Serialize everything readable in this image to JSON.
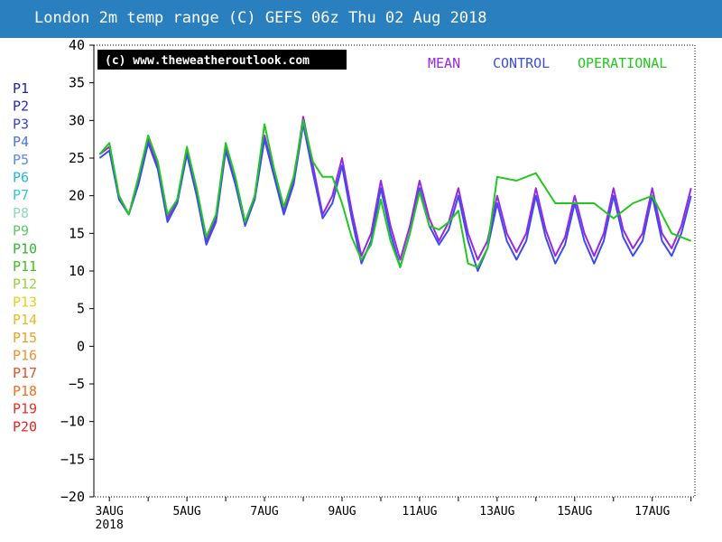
{
  "header": {
    "title": "London 2m temp range (C) GEFS 06z Thu 02 Aug 2018"
  },
  "watermark": "(c) www.theweatheroutlook.com",
  "legend_top": [
    {
      "label": "MEAN",
      "color": "#9a28e0"
    },
    {
      "label": "CONTROL",
      "color": "#3c4cf0"
    },
    {
      "label": "OPERATIONAL",
      "color": "#22c81e"
    }
  ],
  "members": [
    {
      "label": "P1",
      "color": "#2020b8"
    },
    {
      "label": "P2",
      "color": "#2828c8"
    },
    {
      "label": "P3",
      "color": "#3a44d0"
    },
    {
      "label": "P4",
      "color": "#4a74d8"
    },
    {
      "label": "P5",
      "color": "#5a8ae0"
    },
    {
      "label": "P6",
      "color": "#20b8d8"
    },
    {
      "label": "P7",
      "color": "#30c8d0"
    },
    {
      "label": "P8",
      "color": "#90d8b8"
    },
    {
      "label": "P9",
      "color": "#60c860"
    },
    {
      "label": "P10",
      "color": "#30b830"
    },
    {
      "label": "P11",
      "color": "#40c020"
    },
    {
      "label": "P12",
      "color": "#98d040"
    },
    {
      "label": "P13",
      "color": "#e8d020"
    },
    {
      "label": "P14",
      "color": "#f0b820"
    },
    {
      "label": "P15",
      "color": "#f0a020"
    },
    {
      "label": "P16",
      "color": "#f09030"
    },
    {
      "label": "P17",
      "color": "#e85020"
    },
    {
      "label": "P18",
      "color": "#f07020"
    },
    {
      "label": "P19",
      "color": "#e83020"
    },
    {
      "label": "P20",
      "color": "#e82020"
    }
  ],
  "chart_data": {
    "type": "line",
    "title": "London 2m temp range (C) GEFS 06z Thu 02 Aug 2018",
    "xlabel": "",
    "ylabel": "",
    "ylim": [
      -20,
      40
    ],
    "yticks": [
      40,
      35,
      30,
      25,
      20,
      15,
      10,
      5,
      0,
      -5,
      -10,
      -15,
      -20
    ],
    "xlim": [
      2.6,
      18.1
    ],
    "xticks": [
      {
        "day": 3,
        "label": "3AUG",
        "sublabel": "2018"
      },
      {
        "day": 5,
        "label": "5AUG"
      },
      {
        "day": 7,
        "label": "7AUG"
      },
      {
        "day": 9,
        "label": "9AUG"
      },
      {
        "day": 11,
        "label": "11AUG"
      },
      {
        "day": 13,
        "label": "13AUG"
      },
      {
        "day": 15,
        "label": "15AUG"
      },
      {
        "day": 17,
        "label": "17AUG"
      }
    ],
    "grid": false,
    "x_unit": "day of August 2018",
    "series": [
      {
        "name": "MEAN",
        "x": [
          2.75,
          3,
          3.25,
          3.5,
          3.75,
          4,
          4.25,
          4.5,
          4.75,
          5,
          5.25,
          5.5,
          5.75,
          6,
          6.25,
          6.5,
          6.75,
          7,
          7.25,
          7.5,
          7.75,
          8,
          8.25,
          8.5,
          8.75,
          9,
          9.25,
          9.5,
          9.75,
          10,
          10.25,
          10.5,
          10.75,
          11,
          11.25,
          11.5,
          11.75,
          12,
          12.25,
          12.5,
          12.75,
          13,
          13.25,
          13.5,
          13.75,
          14,
          14.25,
          14.5,
          14.75,
          15,
          15.25,
          15.5,
          15.75,
          16,
          16.25,
          16.5,
          16.75,
          17,
          17.25,
          17.5,
          17.75,
          18
        ],
        "y": [
          25.5,
          26.5,
          20,
          17.5,
          22,
          27.5,
          24,
          17,
          19.5,
          26,
          20.5,
          14,
          17,
          26.5,
          22,
          16.5,
          20,
          28,
          23,
          18,
          22,
          30.5,
          24,
          17.5,
          20,
          25,
          18,
          12,
          15,
          22,
          16,
          11.5,
          16,
          22,
          17,
          14,
          16.5,
          21,
          15,
          11.5,
          14,
          20,
          15,
          12.5,
          15,
          21,
          15.5,
          12,
          14.5,
          20,
          15,
          12,
          15,
          21,
          15.5,
          13,
          15,
          21,
          15,
          13,
          16,
          21
        ]
      },
      {
        "name": "CONTROL",
        "x": [
          2.75,
          3,
          3.25,
          3.5,
          3.75,
          4,
          4.25,
          4.5,
          4.75,
          5,
          5.25,
          5.5,
          5.75,
          6,
          6.25,
          6.5,
          6.75,
          7,
          7.25,
          7.5,
          7.75,
          8,
          8.25,
          8.5,
          8.75,
          9,
          9.25,
          9.5,
          9.75,
          10,
          10.25,
          10.5,
          10.75,
          11,
          11.25,
          11.5,
          11.75,
          12,
          12.25,
          12.5,
          12.75,
          13,
          13.25,
          13.5,
          13.75,
          14,
          14.25,
          14.5,
          14.75,
          15,
          15.25,
          15.5,
          15.75,
          16,
          16.25,
          16.5,
          16.75,
          17,
          17.25,
          17.5,
          17.75,
          18
        ],
        "y": [
          25,
          26,
          19.5,
          17.5,
          21.5,
          27,
          23.5,
          16.5,
          19,
          25.5,
          20,
          13.5,
          16.5,
          26,
          21.5,
          16,
          19.5,
          27.5,
          22.5,
          17.5,
          21.5,
          29.5,
          23,
          17,
          19,
          24,
          17,
          11,
          14,
          21,
          15,
          10.5,
          15,
          21,
          16,
          13.5,
          15.5,
          20,
          14,
          10,
          13,
          19,
          14,
          11.5,
          14,
          20,
          14.5,
          11,
          13.5,
          19,
          14,
          11,
          14,
          20,
          14.5,
          12,
          14,
          20,
          14,
          12,
          15,
          20
        ]
      },
      {
        "name": "OPERATIONAL",
        "x": [
          2.75,
          3,
          3.25,
          3.5,
          3.75,
          4,
          4.25,
          4.5,
          4.75,
          5,
          5.25,
          5.5,
          5.75,
          6,
          6.25,
          6.5,
          6.75,
          7,
          7.25,
          7.5,
          7.75,
          8,
          8.25,
          8.5,
          8.75,
          9,
          9.25,
          9.5,
          9.75,
          10,
          10.25,
          10.5,
          10.75,
          11,
          11.25,
          11.5,
          11.75,
          12,
          12.25,
          12.5,
          12.75,
          13,
          13.5,
          14,
          14.5,
          15,
          15.5,
          16,
          16.5,
          17,
          17.5,
          18
        ],
        "y": [
          25.5,
          27,
          20,
          17.5,
          22.5,
          28,
          24.5,
          17.5,
          19.5,
          26.5,
          21,
          14.5,
          17.5,
          27,
          22.5,
          16.5,
          20,
          29.5,
          23.5,
          18.5,
          22.5,
          30,
          24.5,
          22.5,
          22.5,
          19,
          14.5,
          11.5,
          13.5,
          19.5,
          14,
          10.5,
          15,
          20.5,
          16,
          15.5,
          16.5,
          18,
          11,
          10.5,
          13,
          22.5,
          22,
          23,
          19,
          19,
          19,
          17,
          19,
          20,
          15,
          14
        ]
      }
    ]
  }
}
